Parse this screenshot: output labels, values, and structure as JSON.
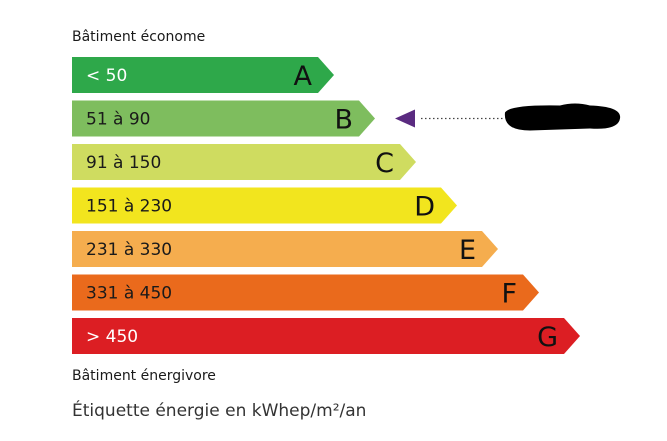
{
  "top_label": "Bâtiment économe",
  "bottom_label": "Bâtiment énergivore",
  "caption": "Étiquette énergie en kWhep/m²/an",
  "classes": [
    {
      "letter": "A",
      "range": "< 50",
      "color": "#2ea84a",
      "text_color": "#ffffff"
    },
    {
      "letter": "B",
      "range": "51 à 90",
      "color": "#7ebd5e",
      "text_color": "#1a1a1a"
    },
    {
      "letter": "C",
      "range": "91 à 150",
      "color": "#cfdc60",
      "text_color": "#1a1a1a"
    },
    {
      "letter": "D",
      "range": "151 à 230",
      "color": "#f2e51e",
      "text_color": "#1a1a1a"
    },
    {
      "letter": "E",
      "range": "231 à 330",
      "color": "#f5ad4e",
      "text_color": "#1a1a1a"
    },
    {
      "letter": "F",
      "range": "331 à 450",
      "color": "#ea6a1c",
      "text_color": "#1a1a1a"
    },
    {
      "letter": "G",
      "range": "> 450",
      "color": "#dc1e23",
      "text_color": "#ffffff"
    }
  ],
  "indicator": {
    "class": "B",
    "arrow_color": "#5a2a80",
    "value_redacted": true
  }
}
